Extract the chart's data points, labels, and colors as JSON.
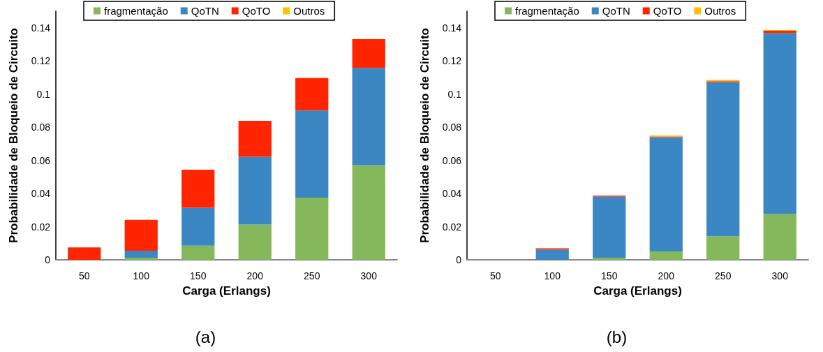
{
  "chart_data": [
    {
      "type": "bar",
      "stacked": true,
      "xlabel": "Carga (Erlangs)",
      "ylabel": "Probabilidade de Bloqueio de Circuito",
      "categories": [
        "50",
        "100",
        "150",
        "200",
        "250",
        "300"
      ],
      "ylim": [
        0,
        0.15
      ],
      "yticks": [
        0,
        0.02,
        0.04,
        0.06,
        0.08,
        0.1,
        0.12,
        0.14
      ],
      "grid": false,
      "legend": "top",
      "annotations": [
        "(a)"
      ],
      "series": [
        {
          "name": "fragmentação",
          "color": "#84b85a",
          "values": [
            0,
            0.0013,
            0.0085,
            0.0213,
            0.0375,
            0.0571
          ]
        },
        {
          "name": "QoTN",
          "color": "#3a87c4",
          "values": [
            0,
            0.0042,
            0.0229,
            0.0408,
            0.0526,
            0.0587
          ]
        },
        {
          "name": "QoTO",
          "color": "#ff2500",
          "values": [
            0.0075,
            0.0186,
            0.023,
            0.0218,
            0.0196,
            0.0173
          ]
        },
        {
          "name": "Outros",
          "color": "#ffc000",
          "values": [
            0,
            0,
            0,
            0,
            0,
            0
          ]
        }
      ]
    },
    {
      "type": "bar",
      "stacked": true,
      "xlabel": "Carga (Erlangs)",
      "ylabel": "Probabilidade de Bloqueio de Circuito",
      "categories": [
        "50",
        "100",
        "150",
        "200",
        "250",
        "300"
      ],
      "ylim": [
        0,
        0.15
      ],
      "yticks": [
        0,
        0.02,
        0.04,
        0.06,
        0.08,
        0.1,
        0.12,
        0.14
      ],
      "grid": false,
      "legend": "top",
      "annotations": [
        "(b)"
      ],
      "series": [
        {
          "name": "fragmentação",
          "color": "#84b85a",
          "values": [
            0,
            0,
            0.0013,
            0.0051,
            0.0142,
            0.0276
          ]
        },
        {
          "name": "QoTN",
          "color": "#3a87c4",
          "values": [
            0,
            0.0061,
            0.0368,
            0.0688,
            0.093,
            0.1092
          ]
        },
        {
          "name": "QoTO",
          "color": "#ff2500",
          "values": [
            0,
            0.0009,
            0.0007,
            0.0005,
            0.0006,
            0.0014
          ]
        },
        {
          "name": "Outros",
          "color": "#ffc000",
          "values": [
            0,
            0,
            0,
            0.0006,
            0.0007,
            0.0004
          ]
        }
      ]
    }
  ]
}
